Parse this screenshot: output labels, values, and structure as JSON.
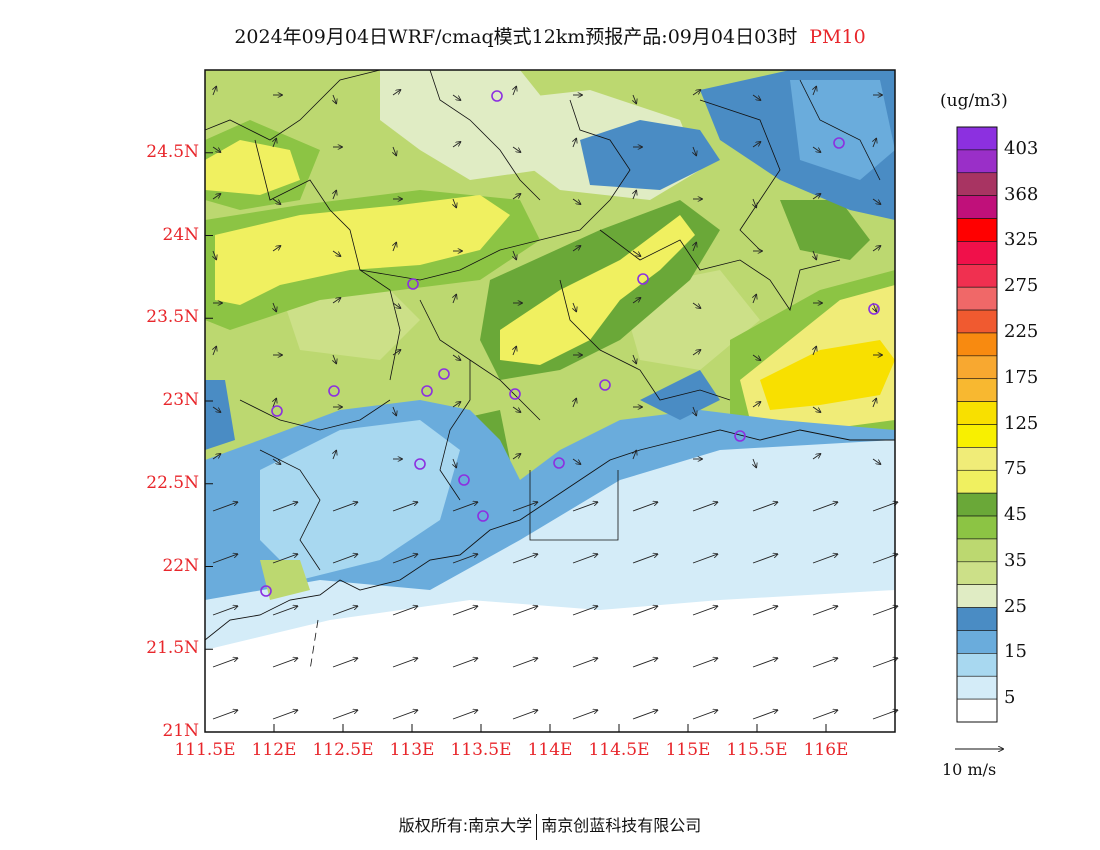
{
  "title": {
    "main": "2024年09月04日WRF/cmaq模式12km预报产品:09月04日03时",
    "pollutant": "PM10"
  },
  "map": {
    "lat_labels": [
      "24.5N",
      "24N",
      "23.5N",
      "23N",
      "22.5N",
      "22N",
      "21.5N",
      "21N"
    ],
    "lon_labels": [
      "111.5E",
      "112E",
      "112.5E",
      "113E",
      "113.5E",
      "114E",
      "114.5E",
      "115E",
      "115.5E",
      "116E"
    ],
    "lat_range": [
      21.0,
      25.0
    ],
    "lon_range": [
      111.5,
      116.5
    ]
  },
  "legend": {
    "unit": "(ug/m3)",
    "labels": [
      "403",
      "368",
      "325",
      "275",
      "225",
      "175",
      "125",
      "75",
      "45",
      "35",
      "25",
      "15",
      "5"
    ],
    "colors_top_to_bottom": [
      "#8c30e0",
      "#9a2fc8",
      "#a83462",
      "#c0107a",
      "#ff0000",
      "#f0104a",
      "#f03050",
      "#f06868",
      "#f05a30",
      "#f88a10",
      "#f8a830",
      "#f8b830",
      "#f8e000",
      "#f8f000",
      "#f0ec78",
      "#f0f060",
      "#6aa838",
      "#8cc444",
      "#bcd870",
      "#cce088",
      "#e0ecc4",
      "#4a8cc4",
      "#6aacdc",
      "#a8d8f0",
      "#d4ecf8",
      "#ffffff"
    ]
  },
  "wind_scale": {
    "label": "10 m/s"
  },
  "footer": {
    "left": "版权所有:南京大学",
    "right": "南京创蓝科技有限公司"
  }
}
